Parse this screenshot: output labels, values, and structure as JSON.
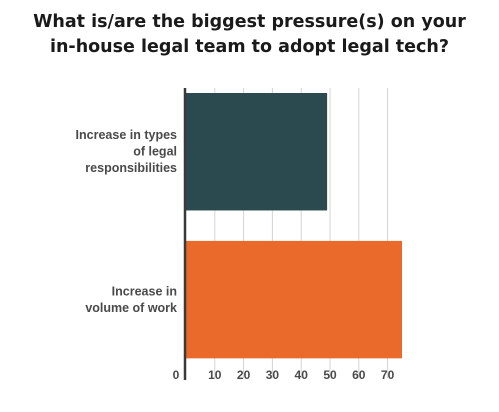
{
  "chart_data": {
    "type": "bar",
    "orientation": "horizontal",
    "title_lines": [
      "What is/are the biggest pressure(s) on your",
      "in-house legal team to adopt legal tech?"
    ],
    "categories": [
      [
        "Increase in types",
        "of legal",
        "responsibilities"
      ],
      [
        "Increase in",
        "volume of work"
      ]
    ],
    "values": [
      49,
      75
    ],
    "bar_colors": [
      "#2a4a4f",
      "#ea6a2c"
    ],
    "x_ticks": [
      0,
      10,
      20,
      30,
      40,
      50,
      60,
      70
    ],
    "xlim": [
      0,
      75
    ],
    "grid": true,
    "xlabel": "",
    "ylabel": ""
  }
}
